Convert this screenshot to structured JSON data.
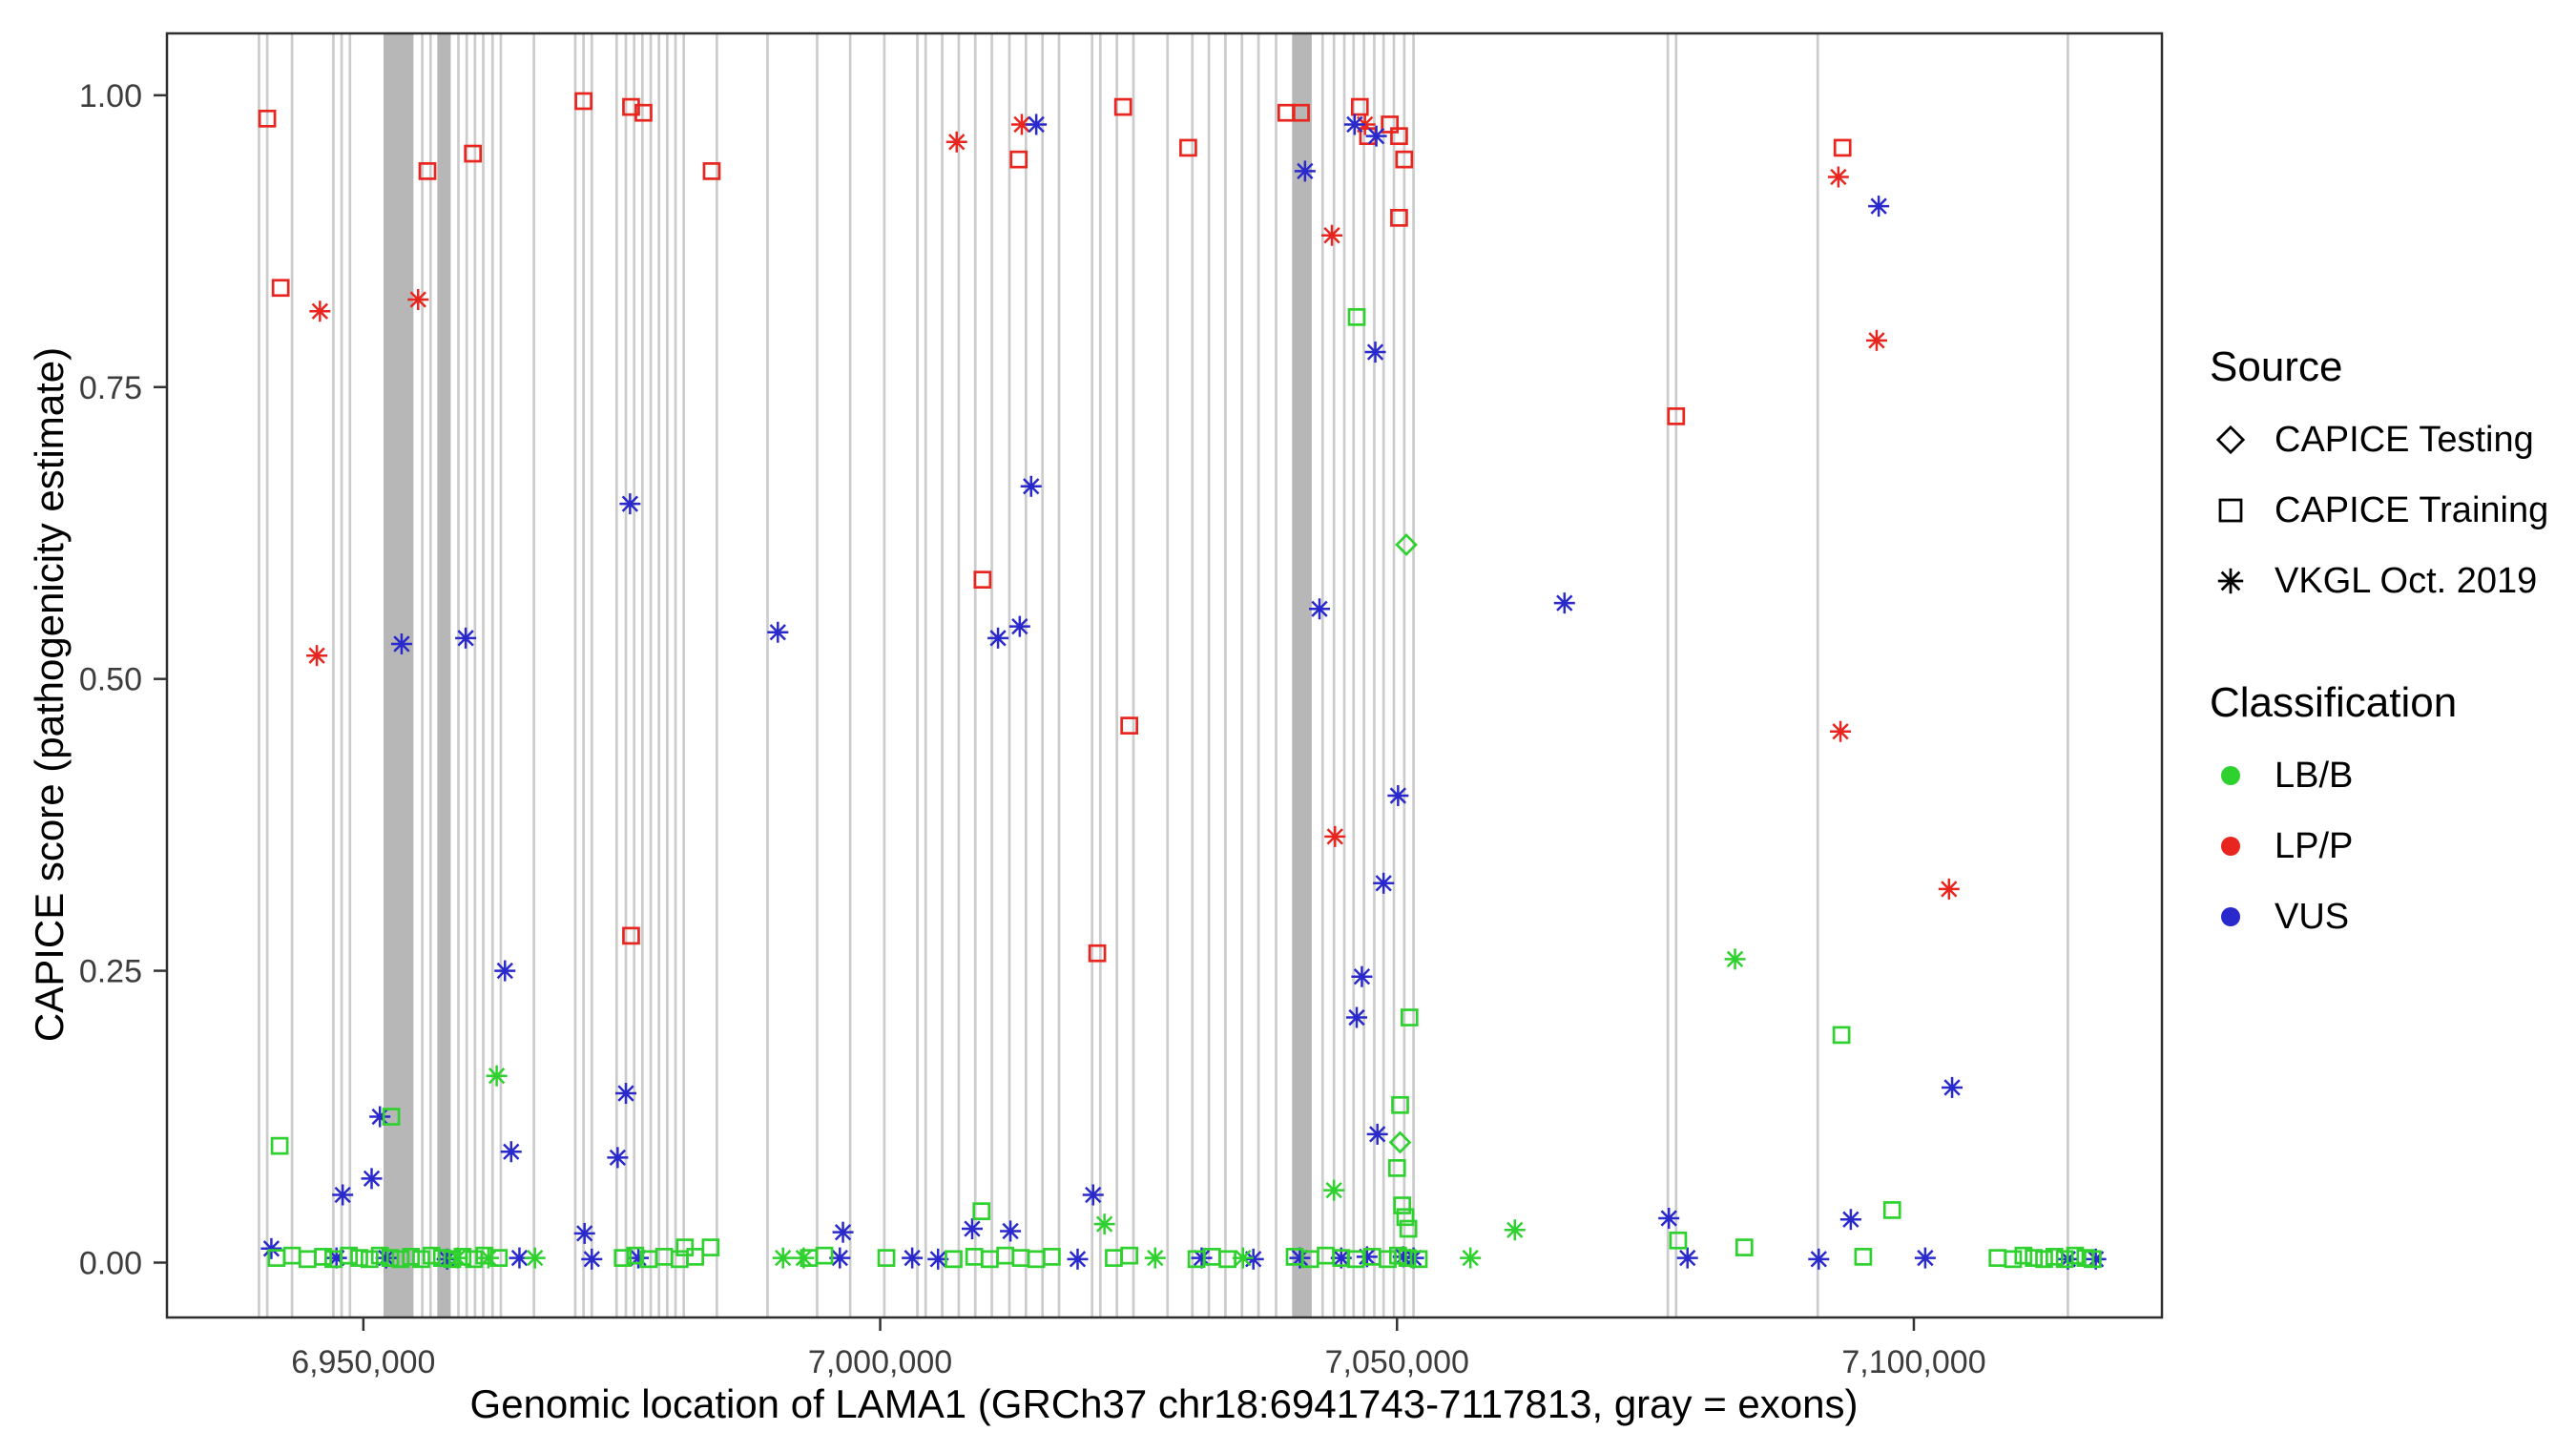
{
  "legend": {
    "source": {
      "title": "Source",
      "items": [
        {
          "label": "CAPICE Testing",
          "shape": "diamond"
        },
        {
          "label": "CAPICE Training",
          "shape": "square"
        },
        {
          "label": "VKGL Oct. 2019",
          "shape": "asterisk"
        }
      ]
    },
    "classification": {
      "title": "Classification",
      "items": [
        {
          "label": "LB/B",
          "color": "#2fd12f"
        },
        {
          "label": "LP/P",
          "color": "#e8251f"
        },
        {
          "label": "VUS",
          "color": "#2929cc"
        }
      ]
    }
  },
  "chart_data": {
    "type": "scatter",
    "title": "",
    "xlabel": "Genomic location of LAMA1 (GRCh37 chr18:6941743-7117813, gray = exons)",
    "ylabel": "CAPICE score (pathogenicity estimate)",
    "x_domain": [
      6931000,
      7124000
    ],
    "y_domain": [
      -0.047,
      1.053
    ],
    "x_ticks": [
      {
        "value": 6950000,
        "label": "6,950,000"
      },
      {
        "value": 7000000,
        "label": "7,000,000"
      },
      {
        "value": 7050000,
        "label": "7,050,000"
      },
      {
        "value": 7100000,
        "label": "7,100,000"
      }
    ],
    "y_ticks": [
      {
        "value": 0.0,
        "label": "0.00"
      },
      {
        "value": 0.25,
        "label": "0.25"
      },
      {
        "value": 0.5,
        "label": "0.50"
      },
      {
        "value": 0.75,
        "label": "0.75"
      },
      {
        "value": 1.0,
        "label": "1.00"
      }
    ],
    "grid": false,
    "legend_position": "right",
    "colors": {
      "LB/B": "#2fd12f",
      "LP/P": "#e8251f",
      "VUS": "#2929cc"
    },
    "shapes": {
      "CAPICE Testing": "diamond",
      "CAPICE Training": "square",
      "VKGL Oct. 2019": "asterisk"
    },
    "exon_color": "#cccccc",
    "exon_band_color": "#b7b7b7",
    "exons": [
      [
        6939900,
        250
      ],
      [
        6940700,
        250
      ],
      [
        6943100,
        250
      ],
      [
        6947100,
        250
      ],
      [
        6947900,
        250
      ],
      [
        6948700,
        250
      ],
      [
        6953400,
        2900
      ],
      [
        6955700,
        250
      ],
      [
        6956500,
        250
      ],
      [
        6957800,
        1300
      ],
      [
        6959200,
        250
      ],
      [
        6960000,
        250
      ],
      [
        6960800,
        250
      ],
      [
        6961600,
        250
      ],
      [
        6962500,
        250
      ],
      [
        6963300,
        250
      ],
      [
        6966500,
        250
      ],
      [
        6970500,
        250
      ],
      [
        6971300,
        250
      ],
      [
        6972100,
        250
      ],
      [
        6974500,
        250
      ],
      [
        6975400,
        250
      ],
      [
        6976200,
        250
      ],
      [
        6977000,
        250
      ],
      [
        6977800,
        250
      ],
      [
        6978600,
        250
      ],
      [
        6979400,
        250
      ],
      [
        6980200,
        250
      ],
      [
        6981000,
        250
      ],
      [
        6984200,
        250
      ],
      [
        6989100,
        250
      ],
      [
        6993900,
        250
      ],
      [
        6997100,
        250
      ],
      [
        7000400,
        250
      ],
      [
        7003600,
        250
      ],
      [
        7004400,
        250
      ],
      [
        7006000,
        250
      ],
      [
        7007600,
        250
      ],
      [
        7009200,
        250
      ],
      [
        7010800,
        250
      ],
      [
        7012500,
        250
      ],
      [
        7014100,
        250
      ],
      [
        7015700,
        250
      ],
      [
        7017300,
        250
      ],
      [
        7020500,
        250
      ],
      [
        7021300,
        250
      ],
      [
        7022900,
        250
      ],
      [
        7024500,
        250
      ],
      [
        7027800,
        250
      ],
      [
        7030200,
        250
      ],
      [
        7031800,
        250
      ],
      [
        7033400,
        250
      ],
      [
        7035000,
        250
      ],
      [
        7036600,
        250
      ],
      [
        7038300,
        250
      ],
      [
        7040800,
        1900
      ],
      [
        7042800,
        250
      ],
      [
        7043900,
        250
      ],
      [
        7044900,
        250
      ],
      [
        7045800,
        250
      ],
      [
        7046800,
        250
      ],
      [
        7047800,
        250
      ],
      [
        7048700,
        250
      ],
      [
        7049700,
        250
      ],
      [
        7050700,
        250
      ],
      [
        7051600,
        250
      ],
      [
        7076200,
        250
      ],
      [
        7077000,
        250
      ],
      [
        7090700,
        250
      ],
      [
        7114900,
        250
      ]
    ],
    "series": [
      {
        "classification": "LP/P",
        "source": "CAPICE Training",
        "points": [
          [
            6940700,
            0.98
          ],
          [
            6942000,
            0.835
          ],
          [
            6956200,
            0.935
          ],
          [
            6960600,
            0.95
          ],
          [
            6971300,
            0.995
          ],
          [
            6975900,
            0.99
          ],
          [
            6977100,
            0.985
          ],
          [
            6983700,
            0.935
          ],
          [
            6975900,
            0.28
          ],
          [
            7009900,
            0.585
          ],
          [
            7013400,
            0.945
          ],
          [
            7023500,
            0.99
          ],
          [
            7024100,
            0.46
          ],
          [
            7021000,
            0.265
          ],
          [
            7029800,
            0.955
          ],
          [
            7039300,
            0.985
          ],
          [
            7040700,
            0.985
          ],
          [
            7046400,
            0.99
          ],
          [
            7047200,
            0.965
          ],
          [
            7049300,
            0.975
          ],
          [
            7050200,
            0.965
          ],
          [
            7050700,
            0.945
          ],
          [
            7050200,
            0.895
          ],
          [
            7077000,
            0.725
          ],
          [
            7093100,
            0.955
          ]
        ]
      },
      {
        "classification": "LP/P",
        "source": "VKGL Oct. 2019",
        "points": [
          [
            6945800,
            0.815
          ],
          [
            6945500,
            0.52
          ],
          [
            6955300,
            0.825
          ],
          [
            7007400,
            0.96
          ],
          [
            7013700,
            0.975
          ],
          [
            7043700,
            0.88
          ],
          [
            7046900,
            0.975
          ],
          [
            7044000,
            0.365
          ],
          [
            7092700,
            0.93
          ],
          [
            7096400,
            0.79
          ],
          [
            7092900,
            0.455
          ],
          [
            7103400,
            0.32
          ]
        ]
      },
      {
        "classification": "VUS",
        "source": "VKGL Oct. 2019",
        "points": [
          [
            6953700,
            0.53
          ],
          [
            6959900,
            0.535
          ],
          [
            6975800,
            0.65
          ],
          [
            6990100,
            0.54
          ],
          [
            7011400,
            0.535
          ],
          [
            7013500,
            0.545
          ],
          [
            7014600,
            0.665
          ],
          [
            7015100,
            0.975
          ],
          [
            7041100,
            0.935
          ],
          [
            7042500,
            0.56
          ],
          [
            7045900,
            0.975
          ],
          [
            7048000,
            0.965
          ],
          [
            7047900,
            0.78
          ],
          [
            7066200,
            0.565
          ],
          [
            7096600,
            0.905
          ],
          [
            7050100,
            0.4
          ],
          [
            7048700,
            0.325
          ],
          [
            7046600,
            0.245
          ],
          [
            7046100,
            0.21
          ],
          [
            7048100,
            0.11
          ],
          [
            6951600,
            0.125
          ],
          [
            6950800,
            0.072
          ],
          [
            6948000,
            0.058
          ],
          [
            6963700,
            0.25
          ],
          [
            6964300,
            0.095
          ],
          [
            6975400,
            0.145
          ],
          [
            6974600,
            0.09
          ],
          [
            6971400,
            0.025
          ],
          [
            6996400,
            0.026
          ],
          [
            7008900,
            0.029
          ],
          [
            7020600,
            0.058
          ],
          [
            7076300,
            0.038
          ],
          [
            7093900,
            0.037
          ],
          [
            7103700,
            0.15
          ],
          [
            6941100,
            0.012
          ],
          [
            6947400,
            0.004
          ],
          [
            6952200,
            0.004
          ],
          [
            6958100,
            0.003
          ],
          [
            6965100,
            0.004
          ],
          [
            6972100,
            0.003
          ],
          [
            6976600,
            0.004
          ],
          [
            6996100,
            0.004
          ],
          [
            7003100,
            0.004
          ],
          [
            7005600,
            0.003
          ],
          [
            7012600,
            0.027
          ],
          [
            7019100,
            0.003
          ],
          [
            7031100,
            0.004
          ],
          [
            7036100,
            0.003
          ],
          [
            7040600,
            0.004
          ],
          [
            7044600,
            0.004
          ],
          [
            7047100,
            0.005
          ],
          [
            7050600,
            0.005
          ],
          [
            7051600,
            0.004
          ],
          [
            7078100,
            0.004
          ],
          [
            7090800,
            0.003
          ],
          [
            7101100,
            0.004
          ],
          [
            7114900,
            0.003
          ],
          [
            7117600,
            0.003
          ]
        ]
      },
      {
        "classification": "LB/B",
        "source": "CAPICE Training",
        "points": [
          [
            6941900,
            0.1
          ],
          [
            6952700,
            0.125
          ],
          [
            7046100,
            0.81
          ],
          [
            7051200,
            0.21
          ],
          [
            7050300,
            0.135
          ],
          [
            7050000,
            0.081
          ],
          [
            7050500,
            0.049
          ],
          [
            7050800,
            0.039
          ],
          [
            7051100,
            0.029
          ],
          [
            7009800,
            0.044
          ],
          [
            7093000,
            0.195
          ],
          [
            7097900,
            0.045
          ],
          [
            7077200,
            0.019
          ],
          [
            7083600,
            0.013
          ],
          [
            6981100,
            0.013
          ],
          [
            6983600,
            0.013
          ],
          [
            6941600,
            0.004
          ],
          [
            6943100,
            0.006
          ],
          [
            6944600,
            0.003
          ],
          [
            6946100,
            0.005
          ],
          [
            6947100,
            0.003
          ],
          [
            6948600,
            0.006
          ],
          [
            6949600,
            0.004
          ],
          [
            6950600,
            0.003
          ],
          [
            6951600,
            0.006
          ],
          [
            6952600,
            0.004
          ],
          [
            6953600,
            0.003
          ],
          [
            6954600,
            0.005
          ],
          [
            6955600,
            0.003
          ],
          [
            6956600,
            0.006
          ],
          [
            6957600,
            0.004
          ],
          [
            6958600,
            0.003
          ],
          [
            6959600,
            0.005
          ],
          [
            6960700,
            0.003
          ],
          [
            6961700,
            0.006
          ],
          [
            6963100,
            0.004
          ],
          [
            6975100,
            0.004
          ],
          [
            6976300,
            0.006
          ],
          [
            6977600,
            0.003
          ],
          [
            6979100,
            0.005
          ],
          [
            6980600,
            0.003
          ],
          [
            6982100,
            0.005
          ],
          [
            6993100,
            0.004
          ],
          [
            6994600,
            0.006
          ],
          [
            7000600,
            0.004
          ],
          [
            7007100,
            0.003
          ],
          [
            7009100,
            0.005
          ],
          [
            7010600,
            0.003
          ],
          [
            7012100,
            0.006
          ],
          [
            7013600,
            0.004
          ],
          [
            7015100,
            0.003
          ],
          [
            7016600,
            0.005
          ],
          [
            7022600,
            0.004
          ],
          [
            7024100,
            0.006
          ],
          [
            7030600,
            0.003
          ],
          [
            7032100,
            0.005
          ],
          [
            7033600,
            0.003
          ],
          [
            7040100,
            0.005
          ],
          [
            7041600,
            0.003
          ],
          [
            7043100,
            0.006
          ],
          [
            7044600,
            0.004
          ],
          [
            7046000,
            0.003
          ],
          [
            7047600,
            0.005
          ],
          [
            7049100,
            0.003
          ],
          [
            7050100,
            0.006
          ],
          [
            7051000,
            0.004
          ],
          [
            7052100,
            0.003
          ],
          [
            7095100,
            0.005
          ],
          [
            7108100,
            0.004
          ],
          [
            7109600,
            0.003
          ],
          [
            7110600,
            0.006
          ],
          [
            7111600,
            0.004
          ],
          [
            7112600,
            0.003
          ],
          [
            7113600,
            0.005
          ],
          [
            7114600,
            0.003
          ],
          [
            7115600,
            0.006
          ],
          [
            7116600,
            0.004
          ],
          [
            7117300,
            0.003
          ]
        ]
      },
      {
        "classification": "LB/B",
        "source": "VKGL Oct. 2019",
        "points": [
          [
            6962900,
            0.16
          ],
          [
            7021700,
            0.033
          ],
          [
            7043900,
            0.062
          ],
          [
            7061400,
            0.028
          ],
          [
            7082700,
            0.26
          ],
          [
            6959100,
            0.004
          ],
          [
            6962100,
            0.004
          ],
          [
            6966600,
            0.004
          ],
          [
            6990600,
            0.004
          ],
          [
            6992600,
            0.004
          ],
          [
            7026600,
            0.004
          ],
          [
            7035100,
            0.004
          ],
          [
            7057100,
            0.004
          ]
        ]
      },
      {
        "classification": "LB/B",
        "source": "CAPICE Testing",
        "points": [
          [
            7050900,
            0.615
          ],
          [
            7050300,
            0.103
          ]
        ]
      }
    ]
  }
}
